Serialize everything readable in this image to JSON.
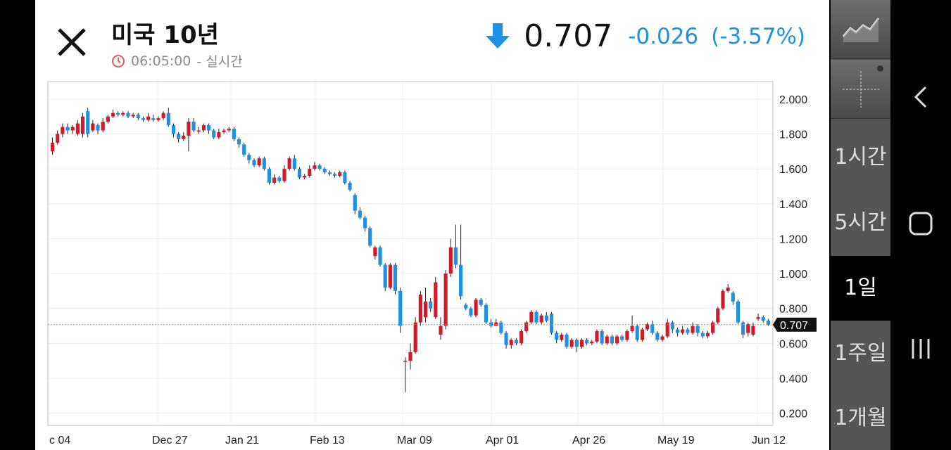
{
  "header": {
    "title": "미국 10년",
    "time": "06:05:00",
    "time_separator": "- 실시간",
    "price": "0.707",
    "change": "-0.026",
    "change_pct": "(-3.57%)",
    "change_color": "#1e90e6",
    "icons": {
      "close": "close-icon",
      "clock": "clock-icon",
      "trend": "down-arrow-icon"
    }
  },
  "chart_data": {
    "type": "candlestick",
    "y_ticks": [
      "2.000",
      "1.800",
      "1.600",
      "1.400",
      "1.200",
      "1.000",
      "0.800",
      "0.600",
      "0.400",
      "0.200"
    ],
    "x_ticks": [
      "c 04",
      "Dec 27",
      "Jan 21",
      "Feb 13",
      "Mar 09",
      "Apr 01",
      "Apr 26",
      "May 19",
      "Jun 12"
    ],
    "ylim": [
      0.13,
      2.1
    ],
    "last_price": 0.707,
    "last_price_label": "0.707",
    "up_color": "#d01b2a",
    "down_color": "#1e90e6",
    "candles": [
      [
        1.7,
        1.75,
        1.78,
        1.68
      ],
      [
        1.75,
        1.8,
        1.82,
        1.74
      ],
      [
        1.8,
        1.84,
        1.86,
        1.78
      ],
      [
        1.84,
        1.82,
        1.86,
        1.8
      ],
      [
        1.82,
        1.84,
        1.85,
        1.8
      ],
      [
        1.8,
        1.86,
        1.88,
        1.79
      ],
      [
        1.8,
        1.9,
        1.92,
        1.78
      ],
      [
        1.93,
        1.8,
        1.95,
        1.78
      ],
      [
        1.82,
        1.86,
        1.88,
        1.81
      ],
      [
        1.85,
        1.82,
        1.86,
        1.8
      ],
      [
        1.82,
        1.87,
        1.89,
        1.81
      ],
      [
        1.87,
        1.9,
        1.91,
        1.86
      ],
      [
        1.9,
        1.92,
        1.94,
        1.89
      ],
      [
        1.92,
        1.91,
        1.93,
        1.9
      ],
      [
        1.91,
        1.92,
        1.93,
        1.9
      ],
      [
        1.92,
        1.9,
        1.93,
        1.89
      ],
      [
        1.9,
        1.91,
        1.92,
        1.89
      ],
      [
        1.91,
        1.89,
        1.92,
        1.88
      ],
      [
        1.89,
        1.88,
        1.9,
        1.87
      ],
      [
        1.88,
        1.9,
        1.92,
        1.87
      ],
      [
        1.89,
        1.88,
        1.91,
        1.87
      ],
      [
        1.88,
        1.89,
        1.9,
        1.87
      ],
      [
        1.89,
        1.92,
        1.93,
        1.88
      ],
      [
        1.92,
        1.85,
        1.95,
        1.84
      ],
      [
        1.85,
        1.8,
        1.86,
        1.78
      ],
      [
        1.8,
        1.77,
        1.81,
        1.75
      ],
      [
        1.77,
        1.79,
        1.81,
        1.76
      ],
      [
        1.79,
        1.87,
        1.89,
        1.7
      ],
      [
        1.87,
        1.82,
        1.89,
        1.81
      ],
      [
        1.82,
        1.82,
        1.84,
        1.8
      ],
      [
        1.82,
        1.85,
        1.86,
        1.81
      ],
      [
        1.85,
        1.82,
        1.86,
        1.8
      ],
      [
        1.82,
        1.78,
        1.83,
        1.77
      ],
      [
        1.78,
        1.81,
        1.83,
        1.77
      ],
      [
        1.81,
        1.82,
        1.83,
        1.8
      ],
      [
        1.82,
        1.83,
        1.84,
        1.81
      ],
      [
        1.83,
        1.77,
        1.84,
        1.76
      ],
      [
        1.77,
        1.74,
        1.78,
        1.72
      ],
      [
        1.74,
        1.68,
        1.75,
        1.67
      ],
      [
        1.68,
        1.65,
        1.69,
        1.63
      ],
      [
        1.65,
        1.62,
        1.66,
        1.61
      ],
      [
        1.62,
        1.66,
        1.67,
        1.61
      ],
      [
        1.66,
        1.6,
        1.67,
        1.59
      ],
      [
        1.6,
        1.52,
        1.61,
        1.51
      ],
      [
        1.52,
        1.55,
        1.57,
        1.51
      ],
      [
        1.55,
        1.53,
        1.56,
        1.52
      ],
      [
        1.53,
        1.6,
        1.62,
        1.52
      ],
      [
        1.6,
        1.66,
        1.67,
        1.59
      ],
      [
        1.66,
        1.6,
        1.68,
        1.59
      ],
      [
        1.6,
        1.55,
        1.61,
        1.54
      ],
      [
        1.55,
        1.56,
        1.57,
        1.54
      ],
      [
        1.56,
        1.6,
        1.62,
        1.55
      ],
      [
        1.6,
        1.62,
        1.64,
        1.59
      ],
      [
        1.62,
        1.6,
        1.63,
        1.59
      ],
      [
        1.6,
        1.58,
        1.61,
        1.57
      ],
      [
        1.58,
        1.57,
        1.59,
        1.56
      ],
      [
        1.57,
        1.56,
        1.58,
        1.55
      ],
      [
        1.56,
        1.58,
        1.59,
        1.55
      ],
      [
        1.58,
        1.52,
        1.59,
        1.51
      ],
      [
        1.52,
        1.48,
        1.53,
        1.47
      ],
      [
        1.45,
        1.36,
        1.46,
        1.34
      ],
      [
        1.36,
        1.32,
        1.38,
        1.31
      ],
      [
        1.32,
        1.26,
        1.33,
        1.24
      ],
      [
        1.26,
        1.16,
        1.27,
        1.15
      ],
      [
        1.1,
        1.15,
        1.16,
        1.08
      ],
      [
        1.15,
        1.05,
        1.16,
        1.04
      ],
      [
        1.05,
        0.92,
        1.06,
        0.9
      ],
      [
        0.92,
        1.05,
        1.06,
        0.91
      ],
      [
        1.05,
        0.9,
        1.06,
        0.88
      ],
      [
        0.9,
        0.7,
        0.92,
        0.66
      ],
      [
        0.5,
        0.5,
        0.52,
        0.32
      ],
      [
        0.5,
        0.55,
        0.6,
        0.45
      ],
      [
        0.55,
        0.72,
        0.75,
        0.54
      ],
      [
        0.72,
        0.88,
        0.9,
        0.7
      ],
      [
        0.75,
        0.84,
        0.92,
        0.72
      ],
      [
        0.84,
        0.8,
        0.86,
        0.78
      ],
      [
        0.75,
        0.95,
        0.98,
        0.74
      ],
      [
        0.65,
        0.7,
        0.75,
        0.62
      ],
      [
        0.7,
        1.0,
        1.02,
        0.68
      ],
      [
        1.0,
        1.15,
        1.2,
        0.98
      ],
      [
        1.15,
        1.05,
        1.28,
        1.03
      ],
      [
        1.05,
        0.87,
        1.28,
        0.85
      ],
      [
        0.82,
        0.8,
        0.83,
        0.79
      ],
      [
        0.8,
        0.76,
        0.81,
        0.75
      ],
      [
        0.76,
        0.85,
        0.86,
        0.75
      ],
      [
        0.85,
        0.82,
        0.86,
        0.81
      ],
      [
        0.82,
        0.72,
        0.83,
        0.71
      ],
      [
        0.72,
        0.7,
        0.74,
        0.69
      ],
      [
        0.7,
        0.72,
        0.74,
        0.7
      ],
      [
        0.72,
        0.66,
        0.73,
        0.65
      ],
      [
        0.66,
        0.59,
        0.67,
        0.57
      ],
      [
        0.59,
        0.62,
        0.63,
        0.57
      ],
      [
        0.62,
        0.6,
        0.63,
        0.59
      ],
      [
        0.6,
        0.67,
        0.68,
        0.59
      ],
      [
        0.67,
        0.72,
        0.73,
        0.66
      ],
      [
        0.72,
        0.78,
        0.79,
        0.71
      ],
      [
        0.78,
        0.72,
        0.79,
        0.71
      ],
      [
        0.72,
        0.76,
        0.77,
        0.71
      ],
      [
        0.76,
        0.73,
        0.78,
        0.72
      ],
      [
        0.77,
        0.66,
        0.78,
        0.65
      ],
      [
        0.66,
        0.62,
        0.67,
        0.6
      ],
      [
        0.62,
        0.65,
        0.66,
        0.61
      ],
      [
        0.65,
        0.58,
        0.66,
        0.57
      ],
      [
        0.58,
        0.62,
        0.63,
        0.57
      ],
      [
        0.62,
        0.58,
        0.63,
        0.55
      ],
      [
        0.58,
        0.62,
        0.63,
        0.57
      ],
      [
        0.62,
        0.6,
        0.63,
        0.59
      ],
      [
        0.6,
        0.61,
        0.62,
        0.59
      ],
      [
        0.61,
        0.67,
        0.68,
        0.6
      ],
      [
        0.67,
        0.6,
        0.68,
        0.59
      ],
      [
        0.6,
        0.64,
        0.65,
        0.59
      ],
      [
        0.64,
        0.6,
        0.65,
        0.59
      ],
      [
        0.6,
        0.64,
        0.65,
        0.59
      ],
      [
        0.64,
        0.62,
        0.65,
        0.61
      ],
      [
        0.62,
        0.67,
        0.68,
        0.61
      ],
      [
        0.67,
        0.7,
        0.76,
        0.66
      ],
      [
        0.7,
        0.62,
        0.71,
        0.61
      ],
      [
        0.62,
        0.68,
        0.69,
        0.61
      ],
      [
        0.68,
        0.71,
        0.72,
        0.67
      ],
      [
        0.71,
        0.66,
        0.73,
        0.65
      ],
      [
        0.66,
        0.62,
        0.67,
        0.61
      ],
      [
        0.62,
        0.64,
        0.65,
        0.61
      ],
      [
        0.64,
        0.72,
        0.74,
        0.63
      ],
      [
        0.72,
        0.68,
        0.73,
        0.66
      ],
      [
        0.68,
        0.66,
        0.69,
        0.64
      ],
      [
        0.66,
        0.68,
        0.7,
        0.65
      ],
      [
        0.68,
        0.66,
        0.69,
        0.65
      ],
      [
        0.66,
        0.7,
        0.72,
        0.65
      ],
      [
        0.7,
        0.66,
        0.71,
        0.64
      ],
      [
        0.66,
        0.64,
        0.67,
        0.63
      ],
      [
        0.64,
        0.66,
        0.67,
        0.63
      ],
      [
        0.66,
        0.72,
        0.73,
        0.65
      ],
      [
        0.72,
        0.8,
        0.81,
        0.71
      ],
      [
        0.8,
        0.9,
        0.91,
        0.79
      ],
      [
        0.9,
        0.92,
        0.94,
        0.89
      ],
      [
        0.89,
        0.84,
        0.9,
        0.82
      ],
      [
        0.84,
        0.72,
        0.85,
        0.71
      ],
      [
        0.72,
        0.65,
        0.73,
        0.63
      ],
      [
        0.66,
        0.71,
        0.72,
        0.64
      ],
      [
        0.65,
        0.7,
        0.72,
        0.64
      ],
      [
        0.74,
        0.75,
        0.77,
        0.73
      ],
      [
        0.75,
        0.73,
        0.76,
        0.72
      ],
      [
        0.73,
        0.707,
        0.74,
        0.7
      ]
    ]
  },
  "sidebar": {
    "icons": [
      "chart-type-icon",
      "crosshair-icon"
    ],
    "intervals": [
      {
        "label": "1시간",
        "active": false
      },
      {
        "label": "5시간",
        "active": false
      },
      {
        "label": "1일",
        "active": true
      },
      {
        "label": "1주일",
        "active": false
      },
      {
        "label": "1개월",
        "active": false
      }
    ]
  },
  "nav": {
    "icons": [
      "back-icon",
      "home-icon",
      "recents-icon"
    ]
  }
}
